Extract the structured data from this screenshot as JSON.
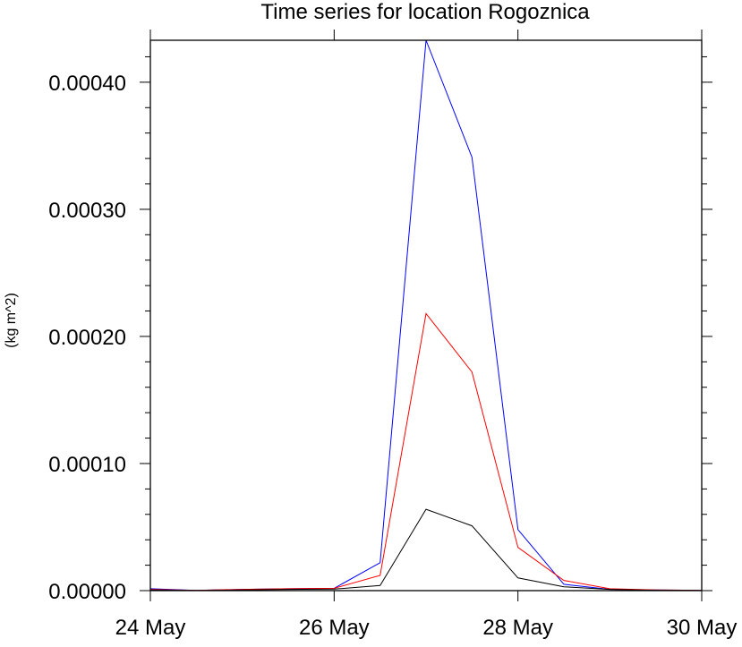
{
  "chart_data": {
    "type": "line",
    "title": "Time series for location Rogoznica",
    "xlabel": "",
    "ylabel": "(kg m^2)",
    "xlim": [
      "2024-05-24",
      "2024-05-30"
    ],
    "ylim": [
      0,
      0.000433
    ],
    "x_ticks": [
      "2024-05-24",
      "2024-05-26",
      "2024-05-28",
      "2024-05-30"
    ],
    "x_tick_labels": [
      "24 May",
      "26 May",
      "28 May",
      "30 May"
    ],
    "y_ticks": [
      0,
      0.0001,
      0.0002,
      0.0003,
      0.0004
    ],
    "y_tick_labels": [
      "0.00000",
      "0.00010",
      "0.00020",
      "0.00030",
      "0.00040"
    ],
    "grid": false,
    "x": [
      "2024-05-24 00:00",
      "2024-05-24 12:00",
      "2024-05-25 00:00",
      "2024-05-25 12:00",
      "2024-05-26 00:00",
      "2024-05-26 12:00",
      "2024-05-27 00:00",
      "2024-05-27 12:00",
      "2024-05-28 00:00",
      "2024-05-28 12:00",
      "2024-05-29 00:00",
      "2024-05-29 12:00",
      "2024-05-30 00:00"
    ],
    "series": [
      {
        "color": "#0000ff",
        "values": [
          1.5e-06,
          2e-07,
          1e-06,
          1.5e-06,
          1.8e-06,
          2.2e-05,
          0.000433,
          0.000341,
          4.8e-05,
          5e-06,
          1e-06,
          5e-07,
          2e-07
        ]
      },
      {
        "color": "#ff0000",
        "values": [
          1e-06,
          2e-07,
          1e-06,
          1.5e-06,
          1.8e-06,
          1.2e-05,
          0.000218,
          0.000172,
          3.4e-05,
          8e-06,
          1.5e-06,
          5e-07,
          2e-07
        ]
      },
      {
        "color": "#000000",
        "values": [
          5e-07,
          1e-07,
          5e-07,
          1e-06,
          1.2e-06,
          4e-06,
          6.4e-05,
          5.1e-05,
          1e-05,
          3e-06,
          1e-06,
          3e-07,
          1e-07
        ]
      }
    ]
  }
}
